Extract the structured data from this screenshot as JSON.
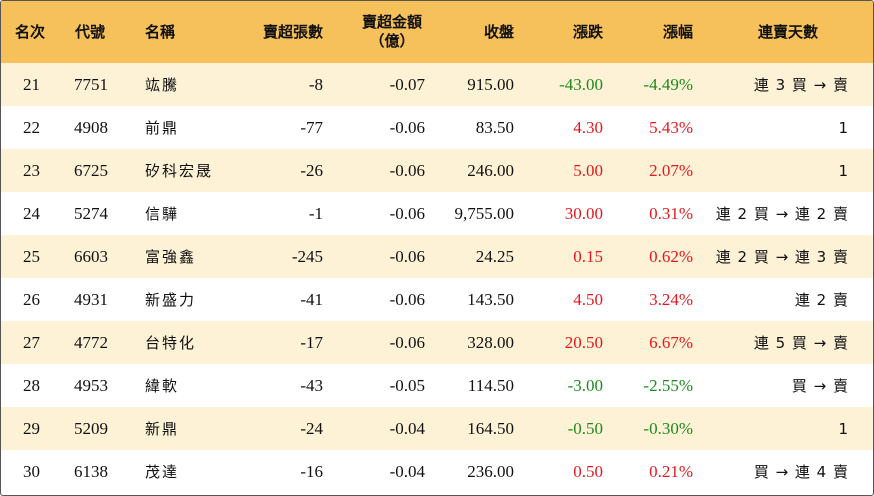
{
  "colors": {
    "header_bg": "#f6c15a",
    "stripe_bg": "#fdf2d6",
    "up": "#e5181e",
    "down": "#1e8a1e"
  },
  "header": {
    "rank": "名次",
    "code": "代號",
    "name": "名稱",
    "net_sell_lots": "賣超張數",
    "net_sell_amount": "賣超金額",
    "net_sell_amount_unit": "（億）",
    "close": "收盤",
    "change": "漲跌",
    "change_pct": "漲幅",
    "streak": "連賣天數"
  },
  "rows": [
    {
      "rank": "21",
      "code": "7751",
      "name": "竑騰",
      "lots": "-8",
      "amount": "-0.07",
      "close": "915.00",
      "change": "-43.00",
      "pct": "-4.49%",
      "direction": "down",
      "streak": "連 3 買 → 賣"
    },
    {
      "rank": "22",
      "code": "4908",
      "name": "前鼎",
      "lots": "-77",
      "amount": "-0.06",
      "close": "83.50",
      "change": "4.30",
      "pct": "5.43%",
      "direction": "up",
      "streak": "1"
    },
    {
      "rank": "23",
      "code": "6725",
      "name": "矽科宏晟",
      "lots": "-26",
      "amount": "-0.06",
      "close": "246.00",
      "change": "5.00",
      "pct": "2.07%",
      "direction": "up",
      "streak": "1"
    },
    {
      "rank": "24",
      "code": "5274",
      "name": "信驊",
      "lots": "-1",
      "amount": "-0.06",
      "close": "9,755.00",
      "change": "30.00",
      "pct": "0.31%",
      "direction": "up",
      "streak": "連 2 買 → 連 2 賣"
    },
    {
      "rank": "25",
      "code": "6603",
      "name": "富強鑫",
      "lots": "-245",
      "amount": "-0.06",
      "close": "24.25",
      "change": "0.15",
      "pct": "0.62%",
      "direction": "up",
      "streak": "連 2 買 → 連 3 賣"
    },
    {
      "rank": "26",
      "code": "4931",
      "name": "新盛力",
      "lots": "-41",
      "amount": "-0.06",
      "close": "143.50",
      "change": "4.50",
      "pct": "3.24%",
      "direction": "up",
      "streak": "連 2 賣"
    },
    {
      "rank": "27",
      "code": "4772",
      "name": "台特化",
      "lots": "-17",
      "amount": "-0.06",
      "close": "328.00",
      "change": "20.50",
      "pct": "6.67%",
      "direction": "up",
      "streak": "連 5 買 → 賣"
    },
    {
      "rank": "28",
      "code": "4953",
      "name": "緯軟",
      "lots": "-43",
      "amount": "-0.05",
      "close": "114.50",
      "change": "-3.00",
      "pct": "-2.55%",
      "direction": "down",
      "streak": "買 → 賣"
    },
    {
      "rank": "29",
      "code": "5209",
      "name": "新鼎",
      "lots": "-24",
      "amount": "-0.04",
      "close": "164.50",
      "change": "-0.50",
      "pct": "-0.30%",
      "direction": "down",
      "streak": "1"
    },
    {
      "rank": "30",
      "code": "6138",
      "name": "茂達",
      "lots": "-16",
      "amount": "-0.04",
      "close": "236.00",
      "change": "0.50",
      "pct": "0.21%",
      "direction": "up",
      "streak": "買 → 連 4 賣"
    }
  ]
}
